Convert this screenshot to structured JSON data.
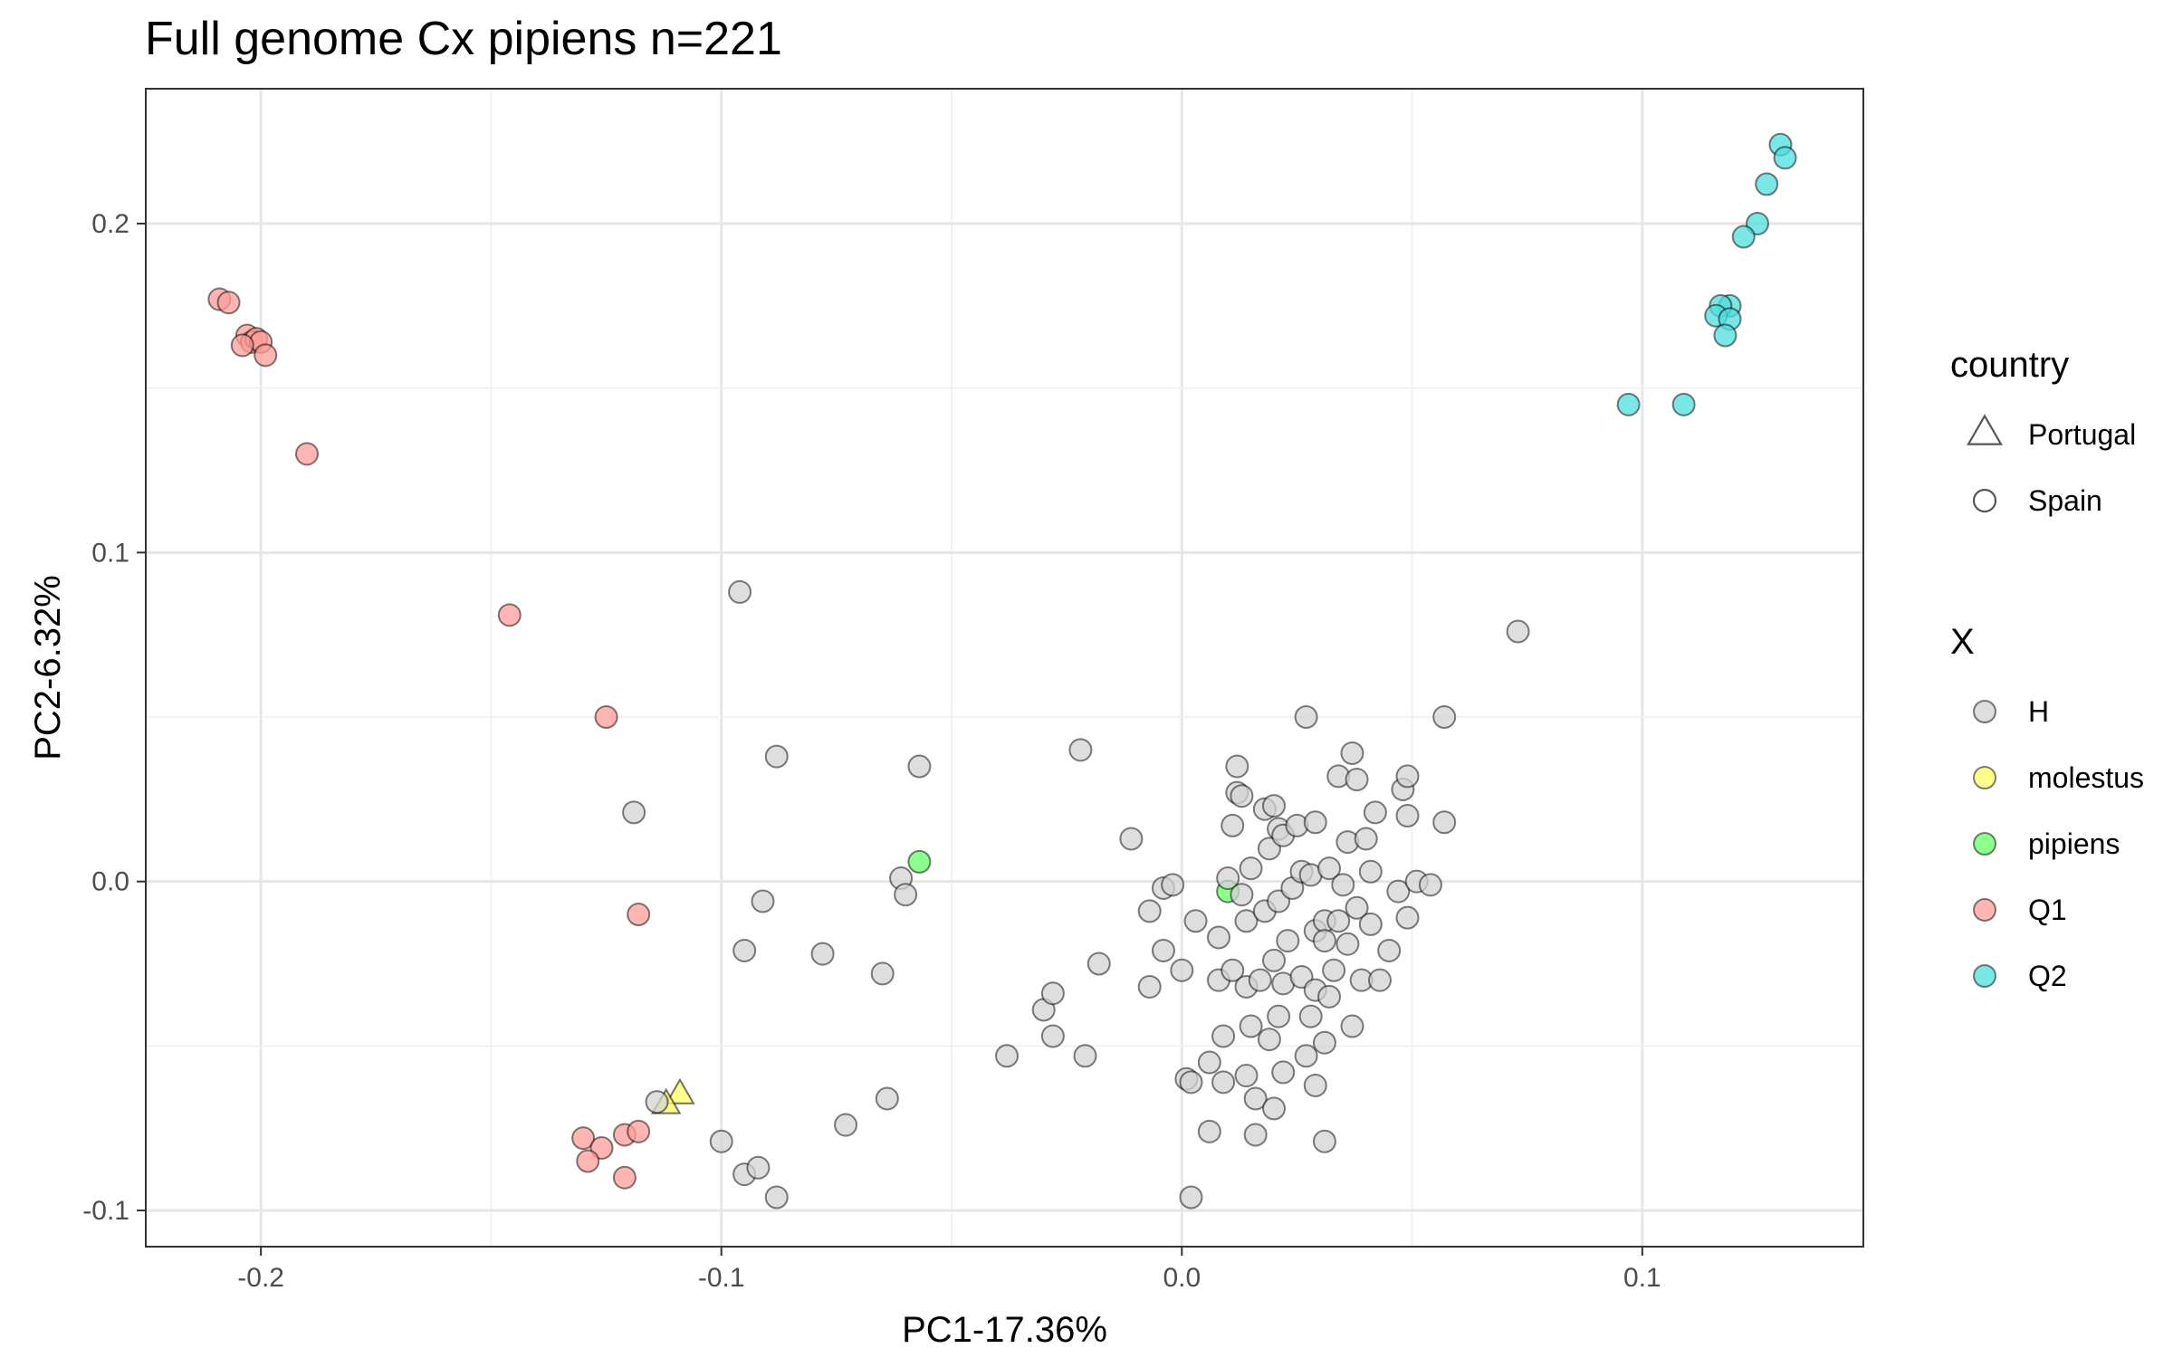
{
  "chart_data": {
    "type": "scatter",
    "title": "Full genome Cx pipiens  n=221",
    "xlabel": "PC1-17.36%",
    "ylabel": "PC2-6.32%",
    "xlim": [
      -0.225,
      0.148
    ],
    "ylim": [
      -0.111,
      0.241
    ],
    "x_ticks": [
      -0.2,
      -0.1,
      0.0,
      0.1
    ],
    "x_tick_labels": [
      "-0.2",
      "-0.1",
      "0.0",
      "0.1"
    ],
    "y_ticks": [
      -0.1,
      0.0,
      0.1,
      0.2
    ],
    "y_tick_labels": [
      "-0.1",
      "0.0",
      "0.1",
      "0.2"
    ],
    "grid": true,
    "legend_position": "right",
    "legends": [
      {
        "title": "country",
        "items": [
          {
            "label": "Portugal",
            "shape": "triangle"
          },
          {
            "label": "Spain",
            "shape": "circle"
          }
        ]
      },
      {
        "title": "X",
        "items": [
          {
            "label": "H",
            "color": "#d3d3d3"
          },
          {
            "label": "molestus",
            "color": "#ffff66"
          },
          {
            "label": "pipiens",
            "color": "#66ff66"
          },
          {
            "label": "Q1",
            "color": "#ff9e98"
          },
          {
            "label": "Q2",
            "color": "#4fdede"
          }
        ]
      }
    ],
    "series": [
      {
        "name": "Q1",
        "color": "#ff9e98",
        "points": [
          [
            -0.209,
            0.177,
            "circle"
          ],
          [
            -0.207,
            0.176,
            "circle"
          ],
          [
            -0.203,
            0.166,
            "circle"
          ],
          [
            -0.202,
            0.164,
            "circle"
          ],
          [
            -0.201,
            0.165,
            "circle"
          ],
          [
            -0.2,
            0.164,
            "circle"
          ],
          [
            -0.204,
            0.163,
            "circle"
          ],
          [
            -0.199,
            0.16,
            "circle"
          ],
          [
            -0.19,
            0.13,
            "circle"
          ],
          [
            -0.146,
            0.081,
            "circle"
          ],
          [
            -0.125,
            0.05,
            "circle"
          ],
          [
            -0.118,
            -0.01,
            "circle"
          ],
          [
            -0.13,
            -0.078,
            "circle"
          ],
          [
            -0.126,
            -0.081,
            "circle"
          ],
          [
            -0.121,
            -0.077,
            "circle"
          ],
          [
            -0.118,
            -0.076,
            "circle"
          ],
          [
            -0.129,
            -0.085,
            "circle"
          ],
          [
            -0.121,
            -0.09,
            "circle"
          ]
        ]
      },
      {
        "name": "Q2",
        "color": "#4fdede",
        "points": [
          [
            0.13,
            0.224,
            "circle"
          ],
          [
            0.131,
            0.22,
            "circle"
          ],
          [
            0.127,
            0.212,
            "circle"
          ],
          [
            0.125,
            0.2,
            "circle"
          ],
          [
            0.122,
            0.196,
            "circle"
          ],
          [
            0.119,
            0.175,
            "circle"
          ],
          [
            0.117,
            0.175,
            "circle"
          ],
          [
            0.116,
            0.172,
            "circle"
          ],
          [
            0.119,
            0.171,
            "circle"
          ],
          [
            0.118,
            0.166,
            "circle"
          ],
          [
            0.097,
            0.145,
            "circle"
          ],
          [
            0.109,
            0.145,
            "circle"
          ]
        ]
      },
      {
        "name": "pipiens",
        "color": "#66ff66",
        "points": [
          [
            -0.057,
            0.006,
            "circle"
          ],
          [
            0.01,
            -0.003,
            "circle"
          ]
        ]
      },
      {
        "name": "molestus",
        "color": "#ffff66",
        "points": [
          [
            -0.109,
            -0.065,
            "triangle"
          ],
          [
            -0.112,
            -0.068,
            "triangle"
          ]
        ]
      },
      {
        "name": "H",
        "color": "#d3d3d3",
        "points": [
          [
            -0.096,
            0.088,
            "circle"
          ],
          [
            -0.088,
            0.038,
            "circle"
          ],
          [
            -0.119,
            0.021,
            "circle"
          ],
          [
            -0.057,
            0.035,
            "circle"
          ],
          [
            -0.091,
            -0.006,
            "circle"
          ],
          [
            -0.061,
            0.001,
            "circle"
          ],
          [
            -0.06,
            -0.004,
            "circle"
          ],
          [
            -0.095,
            -0.021,
            "circle"
          ],
          [
            -0.078,
            -0.022,
            "circle"
          ],
          [
            -0.065,
            -0.028,
            "circle"
          ],
          [
            -0.114,
            -0.067,
            "circle"
          ],
          [
            -0.1,
            -0.079,
            "circle"
          ],
          [
            -0.095,
            -0.089,
            "circle"
          ],
          [
            -0.092,
            -0.087,
            "circle"
          ],
          [
            -0.088,
            -0.096,
            "circle"
          ],
          [
            -0.073,
            -0.074,
            "circle"
          ],
          [
            -0.064,
            -0.066,
            "circle"
          ],
          [
            -0.038,
            -0.053,
            "circle"
          ],
          [
            -0.03,
            -0.039,
            "circle"
          ],
          [
            -0.028,
            -0.034,
            "circle"
          ],
          [
            -0.028,
            -0.047,
            "circle"
          ],
          [
            -0.022,
            0.04,
            "circle"
          ],
          [
            -0.021,
            -0.053,
            "circle"
          ],
          [
            -0.018,
            -0.025,
            "circle"
          ],
          [
            -0.011,
            0.013,
            "circle"
          ],
          [
            -0.007,
            -0.009,
            "circle"
          ],
          [
            -0.007,
            -0.032,
            "circle"
          ],
          [
            -0.004,
            -0.002,
            "circle"
          ],
          [
            -0.002,
            -0.001,
            "circle"
          ],
          [
            -0.004,
            -0.021,
            "circle"
          ],
          [
            0.0,
            -0.027,
            "circle"
          ],
          [
            0.001,
            -0.06,
            "circle"
          ],
          [
            0.002,
            -0.061,
            "circle"
          ],
          [
            0.002,
            -0.096,
            "circle"
          ],
          [
            0.003,
            -0.012,
            "circle"
          ],
          [
            0.006,
            -0.055,
            "circle"
          ],
          [
            0.006,
            -0.076,
            "circle"
          ],
          [
            0.008,
            -0.017,
            "circle"
          ],
          [
            0.008,
            -0.03,
            "circle"
          ],
          [
            0.009,
            -0.047,
            "circle"
          ],
          [
            0.009,
            -0.061,
            "circle"
          ],
          [
            0.01,
            0.001,
            "circle"
          ],
          [
            0.011,
            0.017,
            "circle"
          ],
          [
            0.011,
            -0.027,
            "circle"
          ],
          [
            0.012,
            0.035,
            "circle"
          ],
          [
            0.012,
            0.027,
            "circle"
          ],
          [
            0.013,
            0.026,
            "circle"
          ],
          [
            0.013,
            -0.004,
            "circle"
          ],
          [
            0.014,
            -0.012,
            "circle"
          ],
          [
            0.014,
            -0.032,
            "circle"
          ],
          [
            0.014,
            -0.059,
            "circle"
          ],
          [
            0.015,
            0.004,
            "circle"
          ],
          [
            0.015,
            -0.044,
            "circle"
          ],
          [
            0.016,
            -0.077,
            "circle"
          ],
          [
            0.016,
            -0.066,
            "circle"
          ],
          [
            0.017,
            -0.03,
            "circle"
          ],
          [
            0.018,
            0.022,
            "circle"
          ],
          [
            0.018,
            -0.009,
            "circle"
          ],
          [
            0.019,
            0.01,
            "circle"
          ],
          [
            0.019,
            -0.048,
            "circle"
          ],
          [
            0.02,
            0.023,
            "circle"
          ],
          [
            0.02,
            -0.024,
            "circle"
          ],
          [
            0.02,
            -0.069,
            "circle"
          ],
          [
            0.021,
            0.016,
            "circle"
          ],
          [
            0.021,
            -0.006,
            "circle"
          ],
          [
            0.021,
            -0.041,
            "circle"
          ],
          [
            0.022,
            0.014,
            "circle"
          ],
          [
            0.022,
            -0.031,
            "circle"
          ],
          [
            0.022,
            -0.058,
            "circle"
          ],
          [
            0.023,
            -0.018,
            "circle"
          ],
          [
            0.024,
            -0.002,
            "circle"
          ],
          [
            0.025,
            0.017,
            "circle"
          ],
          [
            0.026,
            0.003,
            "circle"
          ],
          [
            0.026,
            -0.029,
            "circle"
          ],
          [
            0.027,
            0.05,
            "circle"
          ],
          [
            0.027,
            -0.053,
            "circle"
          ],
          [
            0.028,
            0.002,
            "circle"
          ],
          [
            0.028,
            -0.041,
            "circle"
          ],
          [
            0.029,
            0.018,
            "circle"
          ],
          [
            0.029,
            -0.015,
            "circle"
          ],
          [
            0.029,
            -0.033,
            "circle"
          ],
          [
            0.029,
            -0.062,
            "circle"
          ],
          [
            0.031,
            -0.012,
            "circle"
          ],
          [
            0.031,
            -0.018,
            "circle"
          ],
          [
            0.031,
            -0.049,
            "circle"
          ],
          [
            0.031,
            -0.079,
            "circle"
          ],
          [
            0.032,
            0.004,
            "circle"
          ],
          [
            0.032,
            -0.035,
            "circle"
          ],
          [
            0.033,
            -0.027,
            "circle"
          ],
          [
            0.034,
            0.032,
            "circle"
          ],
          [
            0.034,
            -0.012,
            "circle"
          ],
          [
            0.035,
            -0.001,
            "circle"
          ],
          [
            0.036,
            0.012,
            "circle"
          ],
          [
            0.036,
            -0.019,
            "circle"
          ],
          [
            0.037,
            0.039,
            "circle"
          ],
          [
            0.037,
            -0.044,
            "circle"
          ],
          [
            0.038,
            0.031,
            "circle"
          ],
          [
            0.038,
            -0.008,
            "circle"
          ],
          [
            0.039,
            -0.03,
            "circle"
          ],
          [
            0.04,
            0.013,
            "circle"
          ],
          [
            0.041,
            0.003,
            "circle"
          ],
          [
            0.041,
            -0.013,
            "circle"
          ],
          [
            0.042,
            0.021,
            "circle"
          ],
          [
            0.043,
            -0.03,
            "circle"
          ],
          [
            0.045,
            -0.021,
            "circle"
          ],
          [
            0.047,
            -0.003,
            "circle"
          ],
          [
            0.048,
            0.028,
            "circle"
          ],
          [
            0.049,
            0.032,
            "circle"
          ],
          [
            0.049,
            0.02,
            "circle"
          ],
          [
            0.049,
            -0.011,
            "circle"
          ],
          [
            0.051,
            0.0,
            "circle"
          ],
          [
            0.054,
            -0.001,
            "circle"
          ],
          [
            0.057,
            0.05,
            "circle"
          ],
          [
            0.057,
            0.018,
            "circle"
          ],
          [
            0.073,
            0.076,
            "circle"
          ]
        ]
      }
    ]
  }
}
